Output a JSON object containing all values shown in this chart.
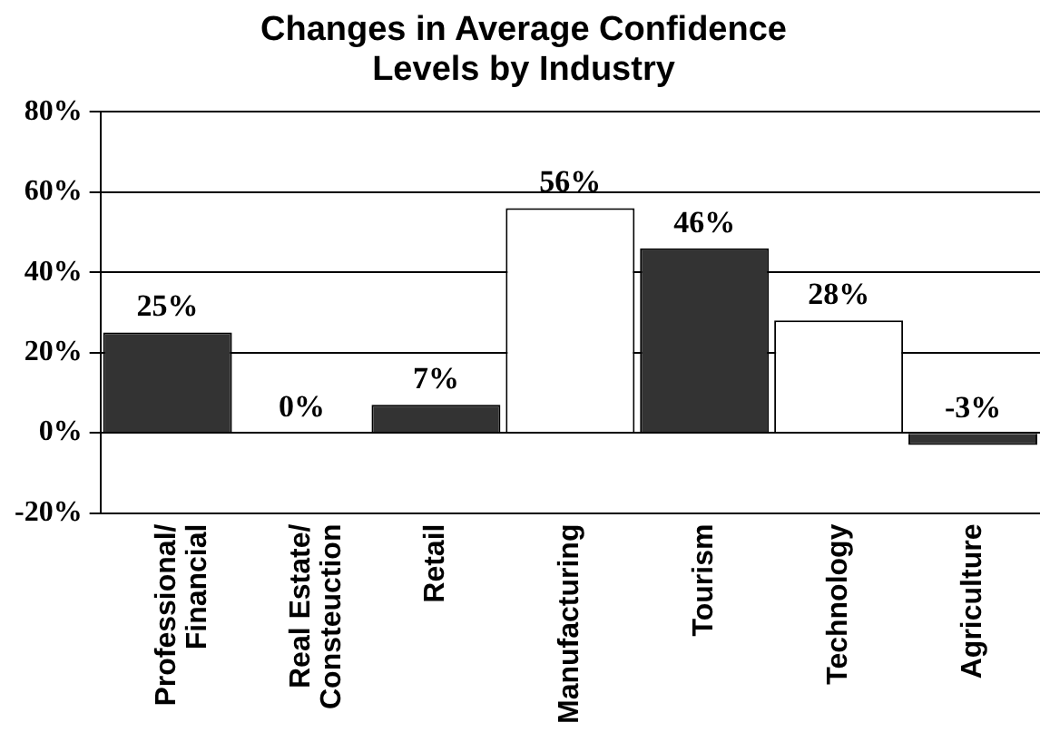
{
  "chart_data": {
    "type": "bar",
    "title": "Changes in Average Confidence\nLevels by Industry",
    "categories": [
      "Professional/\nFinancial",
      "Real Estate/\nConsteuction",
      "Retail",
      "Manufacturing",
      "Tourism",
      "Technology",
      "Agriculture"
    ],
    "values": [
      25,
      0,
      7,
      56,
      46,
      28,
      -3
    ],
    "colors": [
      "#333333",
      "#333333",
      "#333333",
      "#ffffff",
      "#333333",
      "#ffffff",
      "#333333"
    ],
    "value_labels": [
      "25%",
      "0%",
      "7%",
      "56%",
      "46%",
      "28%",
      "-3%"
    ],
    "ylim": [
      -20,
      80
    ],
    "yticks": [
      {
        "value": -20,
        "label": "-20%"
      },
      {
        "value": 0,
        "label": "0%"
      },
      {
        "value": 20,
        "label": "20%"
      },
      {
        "value": 40,
        "label": "40%"
      },
      {
        "value": 60,
        "label": "60%"
      },
      {
        "value": 80,
        "label": "80%"
      }
    ],
    "grid": "y",
    "legend": false
  }
}
